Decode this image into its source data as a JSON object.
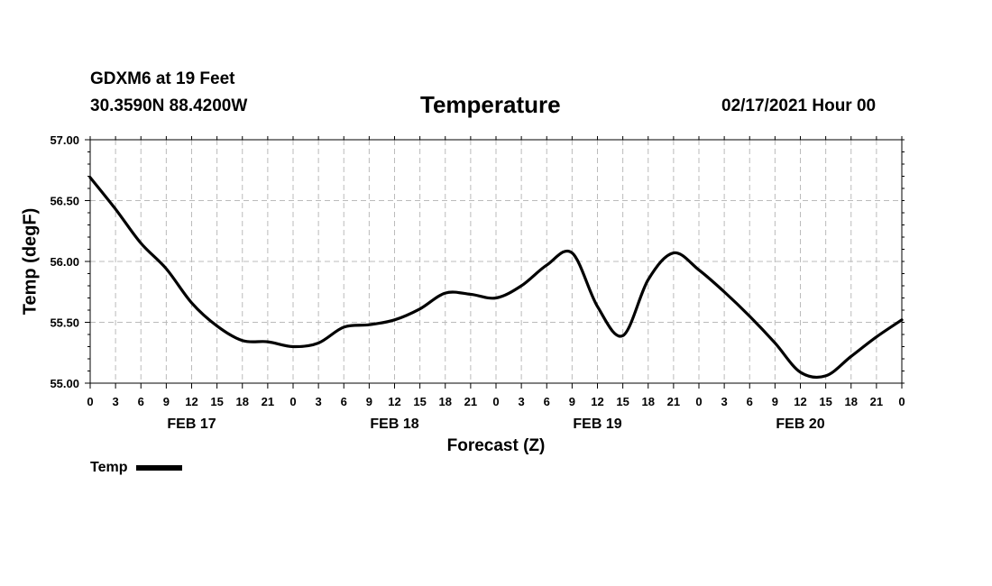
{
  "header": {
    "station": "GDXM6 at 19 Feet",
    "coords": "30.3590N 88.4200W",
    "title": "Temperature",
    "run_time": "02/17/2021 Hour 00"
  },
  "legend": {
    "label": "Temp",
    "color": "#000000"
  },
  "chart_data": {
    "type": "line",
    "title": "Temperature",
    "xlabel": "Forecast (Z)",
    "ylabel": "Temp (degF)",
    "ylim": [
      55.0,
      57.0
    ],
    "xlim": [
      0,
      96
    ],
    "yticks": [
      "55.00",
      "55.50",
      "56.00",
      "56.50",
      "57.00"
    ],
    "xtick_labels": [
      "0",
      "3",
      "6",
      "9",
      "12",
      "15",
      "18",
      "21",
      "0",
      "3",
      "6",
      "9",
      "12",
      "15",
      "18",
      "21",
      "0",
      "3",
      "6",
      "9",
      "12",
      "15",
      "18",
      "21",
      "0",
      "3",
      "6",
      "9",
      "12",
      "15",
      "18",
      "21",
      "0"
    ],
    "day_labels": [
      {
        "label": "FEB 17",
        "hour": 12
      },
      {
        "label": "FEB 18",
        "hour": 36
      },
      {
        "label": "FEB 19",
        "hour": 60
      },
      {
        "label": "FEB 20",
        "hour": 84
      }
    ],
    "grid": true,
    "series": [
      {
        "name": "Temp",
        "color": "#000000",
        "x": [
          0,
          3,
          6,
          9,
          12,
          15,
          18,
          21,
          24,
          27,
          30,
          33,
          36,
          39,
          42,
          45,
          48,
          51,
          54,
          57,
          60,
          63,
          66,
          69,
          72,
          75,
          78,
          81,
          84,
          87,
          90,
          93,
          96
        ],
        "values": [
          56.69,
          56.43,
          56.15,
          55.94,
          55.66,
          55.47,
          55.35,
          55.34,
          55.3,
          55.33,
          55.46,
          55.48,
          55.52,
          55.61,
          55.74,
          55.73,
          55.7,
          55.8,
          55.97,
          56.07,
          55.63,
          55.39,
          55.85,
          56.07,
          55.93,
          55.75,
          55.55,
          55.33,
          55.09,
          55.06,
          55.22,
          55.38,
          55.52
        ]
      }
    ]
  }
}
